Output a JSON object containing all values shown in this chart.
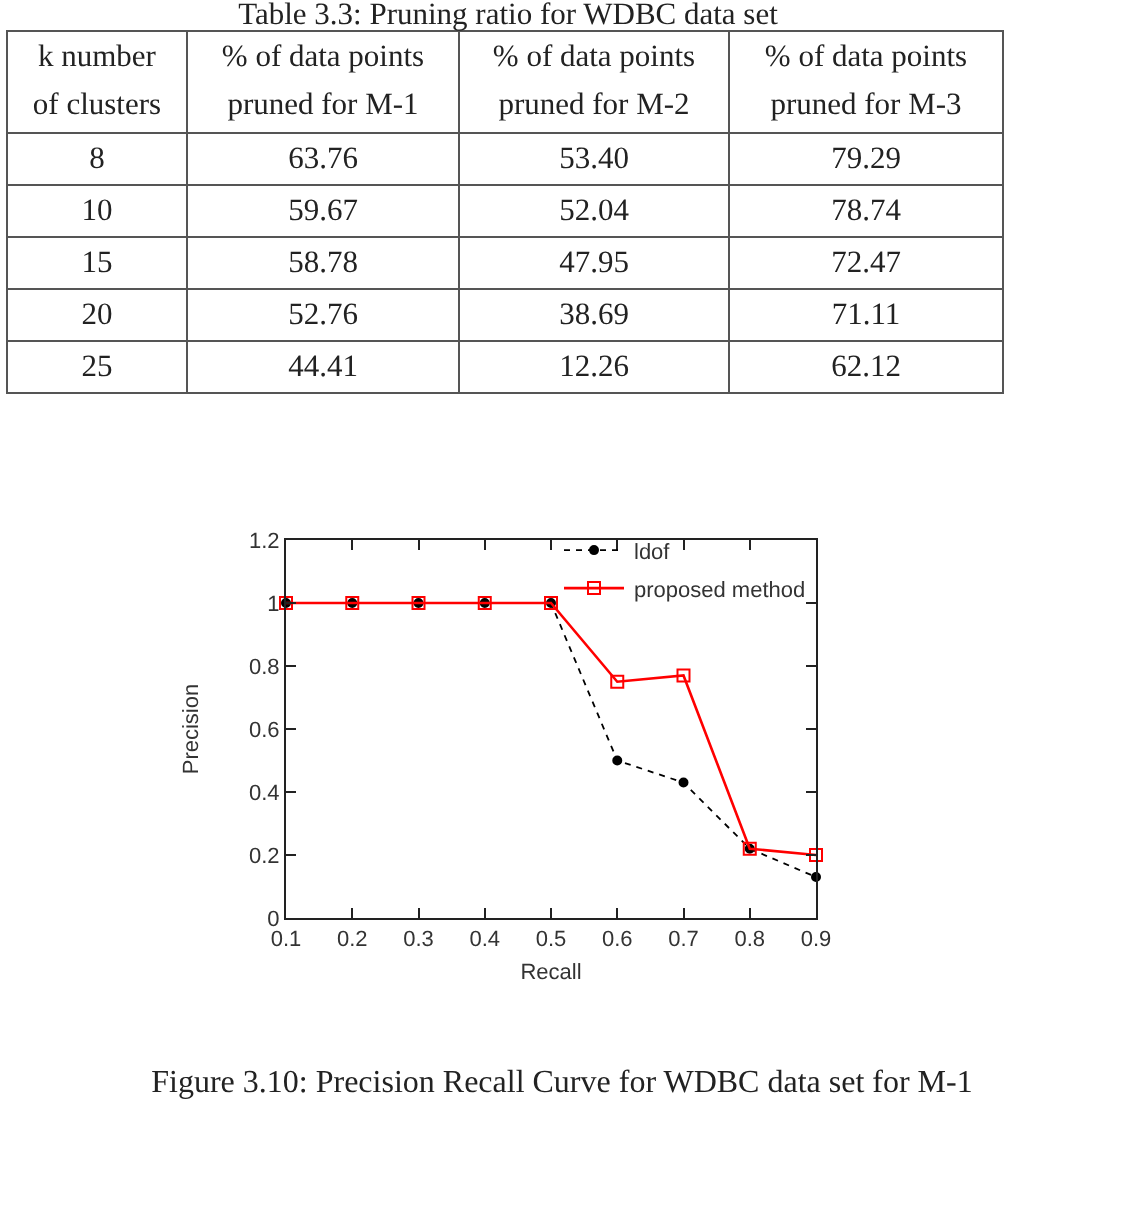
{
  "chart_data": [
    {
      "type": "heatmap",
      "title": "Table 3.3: Pruning ratio for WDBC data set",
      "ylabel": "k number of clusters",
      "categories": [
        "% of data points pruned for M-1",
        "% of data points pruned for M-2",
        "% of data points pruned for M-3"
      ],
      "y_categories": [
        "8",
        "10",
        "15",
        "20",
        "25"
      ],
      "cells": [
        [
          63.76,
          53.4,
          79.29
        ],
        [
          59.67,
          52.04,
          78.74
        ],
        [
          58.78,
          47.95,
          72.47
        ],
        [
          52.76,
          38.69,
          71.11
        ],
        [
          44.41,
          12.26,
          62.12
        ]
      ],
      "cell_labels": [
        [
          "63.76",
          "53.40",
          "79.29"
        ],
        [
          "59.67",
          "52.04",
          "78.74"
        ],
        [
          "58.78",
          "47.95",
          "72.47"
        ],
        [
          "52.76",
          "38.69",
          "71.11"
        ],
        [
          "44.41",
          "12.26",
          "62.12"
        ]
      ]
    },
    {
      "type": "line",
      "xlabel": "Recall",
      "ylabel": "Precision",
      "x": [
        0.1,
        0.2,
        0.3,
        0.4,
        0.5,
        0.6,
        0.7,
        0.8,
        0.9
      ],
      "series": [
        {
          "name": "ldof",
          "color": "#000000",
          "marker": "circle",
          "line_style": "dashed",
          "values": [
            1,
            1,
            1,
            1,
            1,
            0.5,
            0.43,
            0.22,
            0.13
          ]
        },
        {
          "name": "proposed method",
          "color": "#ff0000",
          "marker": "square",
          "line_style": "solid",
          "values": [
            1,
            1,
            1,
            1,
            1,
            0.75,
            0.77,
            0.22,
            0.2
          ]
        }
      ],
      "xlim": [
        0.1,
        0.9
      ],
      "ylim": [
        0,
        1.2
      ],
      "xticks": [
        0.1,
        0.2,
        0.3,
        0.4,
        0.5,
        0.6,
        0.7,
        0.8,
        0.9
      ],
      "yticks": [
        0,
        0.2,
        0.4,
        0.6,
        0.8,
        1,
        1.2
      ],
      "grid": false,
      "legend": "top right",
      "annotations": [
        "Figure 3.10: Precision Recall Curve for WDBC data set for M-1"
      ]
    }
  ]
}
